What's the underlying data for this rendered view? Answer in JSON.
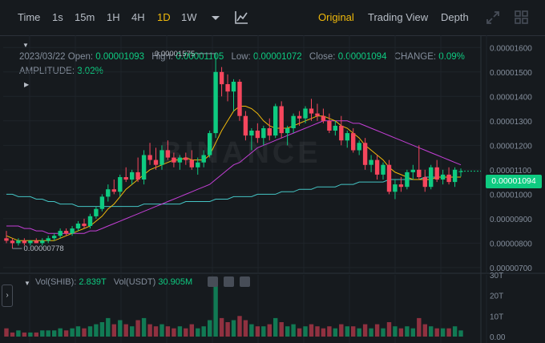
{
  "toolbar": {
    "intervals": [
      "Time",
      "1s",
      "15m",
      "1H",
      "4H",
      "1D",
      "1W"
    ],
    "active_interval": "1D",
    "views": [
      "Original",
      "Trading View",
      "Depth"
    ],
    "active_view": "Original",
    "icons": [
      "chevron-down-icon",
      "indicator-chart-icon",
      "fullscreen-icon",
      "grid-layout-icon"
    ]
  },
  "info": {
    "date": "2023/03/22",
    "open_label": "Open:",
    "open": "0.00001093",
    "high_label": "High:",
    "high": "0.00001105",
    "low_label": "Low:",
    "low": "0.00001072",
    "close_label": "Close:",
    "close": "0.00001094",
    "change_label": "CHANGE:",
    "change": "0.09%",
    "amplitude_label": "AMPLITUDE:",
    "amplitude": "3.02%"
  },
  "watermark": "BINANCE",
  "current_price": "0.00001094",
  "high_marker": "0.00001575",
  "low_marker": "0.00000778",
  "volume": {
    "label1": "Vol(SHIB):",
    "value1": "2.839T",
    "label2": "Vol(USDT)",
    "value2": "30.905M"
  },
  "colors": {
    "up": "#0ecb81",
    "down": "#f6465d",
    "ma7": "#f0b90b",
    "ma25": "#c43fd6",
    "ma99": "#44c4c4",
    "background": "#161a1e"
  },
  "chart_data": {
    "type": "candlestick",
    "ylim": [
      6.8e-06,
      1.65e-05
    ],
    "y_ticks": [
      "0.00001600",
      "0.00001500",
      "0.00001400",
      "0.00001300",
      "0.00001200",
      "0.00001100",
      "0.00001000",
      "0.00000900",
      "0.00000800",
      "0.00000700"
    ],
    "candles": [
      [
        8.2e-06,
        8.5e-06,
        8e-06,
        8.1e-06
      ],
      [
        8.1e-06,
        8.2e-06,
        7.78e-06,
        8e-06
      ],
      [
        8e-06,
        8.2e-06,
        7.9e-06,
        8.1e-06
      ],
      [
        8.1e-06,
        8.2e-06,
        7.9e-06,
        8e-06
      ],
      [
        8e-06,
        8.1e-06,
        7.9e-06,
        8.1e-06
      ],
      [
        8.1e-06,
        8.2e-06,
        8e-06,
        8e-06
      ],
      [
        8e-06,
        8.2e-06,
        7.9e-06,
        8.1e-06
      ],
      [
        8.1e-06,
        8.3e-06,
        8e-06,
        8.2e-06
      ],
      [
        8.2e-06,
        8.4e-06,
        8.1e-06,
        8.3e-06
      ],
      [
        8.3e-06,
        8.6e-06,
        8.2e-06,
        8.5e-06
      ],
      [
        8.5e-06,
        8.6e-06,
        8.3e-06,
        8.4e-06
      ],
      [
        8.4e-06,
        8.7e-06,
        8.3e-06,
        8.6e-06
      ],
      [
        8.6e-06,
        8.9e-06,
        8.5e-06,
        8.8e-06
      ],
      [
        8.8e-06,
        9e-06,
        8.6e-06,
        8.7e-06
      ],
      [
        8.7e-06,
        9.2e-06,
        8.6e-06,
        9.1e-06
      ],
      [
        9.1e-06,
        9.5e-06,
        9e-06,
        9.4e-06
      ],
      [
        9.4e-06,
        1e-05,
        9.3e-06,
        9.9e-06
      ],
      [
        9.9e-06,
        1.04e-05,
        9.7e-06,
        1.02e-05
      ],
      [
        1.02e-05,
        1.06e-05,
        1e-05,
        1.01e-05
      ],
      [
        1.01e-05,
        1.08e-05,
        9.9e-06,
        1.07e-05
      ],
      [
        1.07e-05,
        1.11e-05,
        1.05e-05,
        1.06e-05
      ],
      [
        1.06e-05,
        1.1e-05,
        1.04e-05,
        1.09e-05
      ],
      [
        1.09e-05,
        1.15e-05,
        1.05e-05,
        1.06e-05
      ],
      [
        1.06e-05,
        1.18e-05,
        1.04e-05,
        1.16e-05
      ],
      [
        1.16e-05,
        1.21e-05,
        1.12e-05,
        1.14e-05
      ],
      [
        1.14e-05,
        1.19e-05,
        1.1e-05,
        1.12e-05
      ],
      [
        1.12e-05,
        1.2e-05,
        1.1e-05,
        1.18e-05
      ],
      [
        1.18e-05,
        1.22e-05,
        1.14e-05,
        1.15e-05
      ],
      [
        1.15e-05,
        1.17e-05,
        1.11e-05,
        1.13e-05
      ],
      [
        1.13e-05,
        1.16e-05,
        1.1e-05,
        1.15e-05
      ],
      [
        1.15e-05,
        1.17e-05,
        1.12e-05,
        1.14e-05
      ],
      [
        1.14e-05,
        1.18e-05,
        1.1e-05,
        1.11e-05
      ],
      [
        1.11e-05,
        1.15e-05,
        1.08e-05,
        1.13e-05
      ],
      [
        1.13e-05,
        1.18e-05,
        1.11e-05,
        1.16e-05
      ],
      [
        1.16e-05,
        1.26e-05,
        1.15e-05,
        1.25e-05
      ],
      [
        1.25e-05,
        1.575e-05,
        1.23e-05,
        1.5e-05
      ],
      [
        1.5e-05,
        1.52e-05,
        1.4e-05,
        1.45e-05
      ],
      [
        1.45e-05,
        1.49e-05,
        1.38e-05,
        1.42e-05
      ],
      [
        1.42e-05,
        1.47e-05,
        1.34e-05,
        1.46e-05
      ],
      [
        1.46e-05,
        1.47e-05,
        1.3e-05,
        1.32e-05
      ],
      [
        1.32e-05,
        1.34e-05,
        1.22e-05,
        1.24e-05
      ],
      [
        1.24e-05,
        1.27e-05,
        1.18e-05,
        1.26e-05
      ],
      [
        1.26e-05,
        1.29e-05,
        1.21e-05,
        1.23e-05
      ],
      [
        1.23e-05,
        1.28e-05,
        1.2e-05,
        1.27e-05
      ],
      [
        1.27e-05,
        1.31e-05,
        1.22e-05,
        1.24e-05
      ],
      [
        1.24e-05,
        1.37e-05,
        1.23e-05,
        1.36e-05
      ],
      [
        1.36e-05,
        1.38e-05,
        1.23e-05,
        1.25e-05
      ],
      [
        1.25e-05,
        1.28e-05,
        1.2e-05,
        1.27e-05
      ],
      [
        1.27e-05,
        1.33e-05,
        1.25e-05,
        1.32e-05
      ],
      [
        1.32e-05,
        1.34e-05,
        1.28e-05,
        1.31e-05
      ],
      [
        1.31e-05,
        1.36e-05,
        1.29e-05,
        1.35e-05
      ],
      [
        1.35e-05,
        1.39e-05,
        1.3e-05,
        1.33e-05
      ],
      [
        1.33e-05,
        1.37e-05,
        1.3e-05,
        1.32e-05
      ],
      [
        1.32e-05,
        1.35e-05,
        1.29e-05,
        1.3e-05
      ],
      [
        1.3e-05,
        1.33e-05,
        1.25e-05,
        1.26e-05
      ],
      [
        1.26e-05,
        1.3e-05,
        1.24e-05,
        1.28e-05
      ],
      [
        1.28e-05,
        1.32e-05,
        1.2e-05,
        1.22e-05
      ],
      [
        1.22e-05,
        1.26e-05,
        1.19e-05,
        1.25e-05
      ],
      [
        1.25e-05,
        1.27e-05,
        1.17e-05,
        1.18e-05
      ],
      [
        1.18e-05,
        1.22e-05,
        1.16e-05,
        1.21e-05
      ],
      [
        1.21e-05,
        1.23e-05,
        1.1e-05,
        1.12e-05
      ],
      [
        1.12e-05,
        1.16e-05,
        1.09e-05,
        1.14e-05
      ],
      [
        1.14e-05,
        1.16e-05,
        1.06e-05,
        1.08e-05
      ],
      [
        1.08e-05,
        1.13e-05,
        1.06e-05,
        1.12e-05
      ],
      [
        1.12e-05,
        1.14e-05,
        1e-05,
        1.01e-05
      ],
      [
        1.01e-05,
        1.06e-05,
        9.8e-06,
        1.04e-05
      ],
      [
        1.04e-05,
        1.07e-05,
        1.01e-05,
        1.03e-05
      ],
      [
        1.03e-05,
        1.1e-05,
        1.02e-05,
        1.09e-05
      ],
      [
        1.09e-05,
        1.12e-05,
        1.06e-05,
        1.1e-05
      ],
      [
        1.1e-05,
        1.2e-05,
        1.06e-05,
        1.07e-05
      ],
      [
        1.07e-05,
        1.1e-05,
        1.01e-05,
        1.03e-05
      ],
      [
        1.03e-05,
        1.12e-05,
        1.02e-05,
        1.11e-05
      ],
      [
        1.11e-05,
        1.14e-05,
        1.05e-05,
        1.06e-05
      ],
      [
        1.06e-05,
        1.1e-05,
        1.04e-05,
        1.08e-05
      ],
      [
        1.08e-05,
        1.11e-05,
        1.04e-05,
        1.05e-05
      ],
      [
        1.05e-05,
        1.11e-05,
        1.03e-05,
        1.1e-05
      ],
      [
        1.093e-05,
        1.105e-05,
        1.072e-05,
        1.094e-05
      ]
    ],
    "ma7": [
      8.3e-06,
      8.2e-06,
      8.1e-06,
      8.1e-06,
      8.1e-06,
      8.1e-06,
      8.1e-06,
      8.1e-06,
      8.1e-06,
      8.2e-06,
      8.3e-06,
      8.4e-06,
      8.5e-06,
      8.6e-06,
      8.7e-06,
      8.9e-06,
      9.1e-06,
      9.4e-06,
      9.6e-06,
      9.9e-06,
      1.02e-05,
      1.04e-05,
      1.06e-05,
      1.08e-05,
      1.1e-05,
      1.11e-05,
      1.12e-05,
      1.13e-05,
      1.14e-05,
      1.14e-05,
      1.15e-05,
      1.14e-05,
      1.14e-05,
      1.14e-05,
      1.16e-05,
      1.21e-05,
      1.26e-05,
      1.3e-05,
      1.34e-05,
      1.36e-05,
      1.36e-05,
      1.35e-05,
      1.33e-05,
      1.3e-05,
      1.28e-05,
      1.27e-05,
      1.27e-05,
      1.27e-05,
      1.28e-05,
      1.29e-05,
      1.3e-05,
      1.31e-05,
      1.32e-05,
      1.32e-05,
      1.31e-05,
      1.3e-05,
      1.28e-05,
      1.27e-05,
      1.25e-05,
      1.23e-05,
      1.2e-05,
      1.18e-05,
      1.16e-05,
      1.14e-05,
      1.11e-05,
      1.09e-05,
      1.08e-05,
      1.07e-05,
      1.06e-05,
      1.06e-05,
      1.06e-05,
      1.06e-05,
      1.07e-05,
      1.07e-05,
      1.07e-05,
      1.07e-05,
      1.07e-05
    ],
    "ma25": [
      8.7e-06,
      8.7e-06,
      8.7e-06,
      8.6e-06,
      8.6e-06,
      8.5e-06,
      8.5e-06,
      8.4e-06,
      8.4e-06,
      8.4e-06,
      8.4e-06,
      8.4e-06,
      8.4e-06,
      8.4e-06,
      8.5e-06,
      8.5e-06,
      8.6e-06,
      8.7e-06,
      8.8e-06,
      8.9e-06,
      9e-06,
      9.1e-06,
      9.2e-06,
      9.3e-06,
      9.4e-06,
      9.5e-06,
      9.6e-06,
      9.7e-06,
      9.8e-06,
      9.9e-06,
      1e-05,
      1.01e-05,
      1.02e-05,
      1.03e-05,
      1.04e-05,
      1.06e-05,
      1.08e-05,
      1.1e-05,
      1.12e-05,
      1.13e-05,
      1.15e-05,
      1.17e-05,
      1.19e-05,
      1.2e-05,
      1.21e-05,
      1.22e-05,
      1.23e-05,
      1.24e-05,
      1.25e-05,
      1.26e-05,
      1.27e-05,
      1.28e-05,
      1.29e-05,
      1.3e-05,
      1.3e-05,
      1.3e-05,
      1.3e-05,
      1.3e-05,
      1.29e-05,
      1.29e-05,
      1.28e-05,
      1.27e-05,
      1.26e-05,
      1.25e-05,
      1.24e-05,
      1.23e-05,
      1.22e-05,
      1.21e-05,
      1.2e-05,
      1.19e-05,
      1.18e-05,
      1.17e-05,
      1.16e-05,
      1.15e-05,
      1.14e-05,
      1.13e-05,
      1.12e-05
    ],
    "ma99": [
      1e-05,
      1e-05,
      9.9e-06,
      9.9e-06,
      9.9e-06,
      9.8e-06,
      9.8e-06,
      9.7e-06,
      9.7e-06,
      9.6e-06,
      9.6e-06,
      9.6e-06,
      9.5e-06,
      9.5e-06,
      9.5e-06,
      9.5e-06,
      9.5e-06,
      9.5e-06,
      9.5e-06,
      9.5e-06,
      9.5e-06,
      9.5e-06,
      9.5e-06,
      9.6e-06,
      9.6e-06,
      9.6e-06,
      9.6e-06,
      9.6e-06,
      9.6e-06,
      9.6e-06,
      9.7e-06,
      9.7e-06,
      9.7e-06,
      9.7e-06,
      9.7e-06,
      9.8e-06,
      9.8e-06,
      9.8e-06,
      9.9e-06,
      9.9e-06,
      9.9e-06,
      9.9e-06,
      1e-05,
      1e-05,
      1e-05,
      1e-05,
      1.01e-05,
      1.01e-05,
      1.01e-05,
      1.02e-05,
      1.02e-05,
      1.02e-05,
      1.03e-05,
      1.03e-05,
      1.03e-05,
      1.03e-05,
      1.04e-05,
      1.04e-05,
      1.04e-05,
      1.05e-05,
      1.05e-05,
      1.05e-05,
      1.05e-05,
      1.05e-05,
      1.06e-05,
      1.06e-05,
      1.06e-05,
      1.06e-05,
      1.06e-05,
      1.06e-05,
      1.07e-05,
      1.07e-05,
      1.07e-05,
      1.07e-05,
      1.07e-05,
      1.07e-05,
      1.07e-05
    ],
    "volume_ylim": [
      0,
      30
    ],
    "volume_ticks": [
      "30T",
      "20T",
      "10T",
      "0.00"
    ],
    "volumes": [
      4,
      2,
      3,
      2,
      2,
      2,
      3,
      3,
      3,
      4,
      3,
      4,
      5,
      4,
      5,
      6,
      7,
      9,
      6,
      8,
      6,
      5,
      8,
      9,
      6,
      5,
      6,
      5,
      4,
      5,
      4,
      6,
      4,
      5,
      8,
      27,
      9,
      7,
      8,
      10,
      8,
      6,
      5,
      5,
      6,
      9,
      7,
      5,
      6,
      4,
      5,
      6,
      5,
      4,
      5,
      4,
      6,
      5,
      5,
      4,
      6,
      4,
      6,
      4,
      7,
      5,
      4,
      5,
      4,
      9,
      6,
      5,
      4,
      4,
      4,
      5,
      3
    ]
  }
}
